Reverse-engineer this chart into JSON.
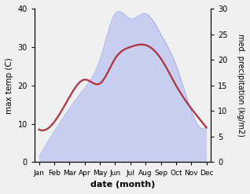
{
  "months": [
    "Jan",
    "Feb",
    "Mar",
    "Apr",
    "May",
    "Jun",
    "Jul",
    "Aug",
    "Sep",
    "Oct",
    "Nov",
    "Dec"
  ],
  "month_positions": [
    0,
    1,
    2,
    3,
    4,
    5,
    6,
    7,
    8,
    9,
    10,
    11
  ],
  "temperature": [
    8.5,
    10.5,
    17.0,
    21.5,
    20.5,
    27.0,
    30.0,
    30.5,
    27.0,
    20.0,
    14.0,
    9.0
  ],
  "precipitation": [
    1.0,
    6.0,
    10.5,
    14.5,
    20.0,
    29.0,
    28.0,
    29.0,
    25.0,
    19.0,
    10.0,
    7.0
  ],
  "temp_ylim": [
    0,
    40
  ],
  "precip_ylim": [
    0,
    30
  ],
  "temp_color": "#b03040",
  "precip_fill_color": "#c0c8f0",
  "precip_edge_color": "#9aa8e8",
  "precip_alpha": 0.85,
  "left_ylabel": "max temp (C)",
  "right_ylabel": "med. precipitation (kg/m2)",
  "xlabel": "date (month)",
  "temp_linewidth": 1.6,
  "left_yticks": [
    0,
    10,
    20,
    30,
    40
  ],
  "right_yticks": [
    0,
    5,
    10,
    15,
    20,
    25,
    30
  ],
  "figsize": [
    3.18,
    2.47
  ],
  "dpi": 100,
  "bg_color": "#f0f0f0"
}
